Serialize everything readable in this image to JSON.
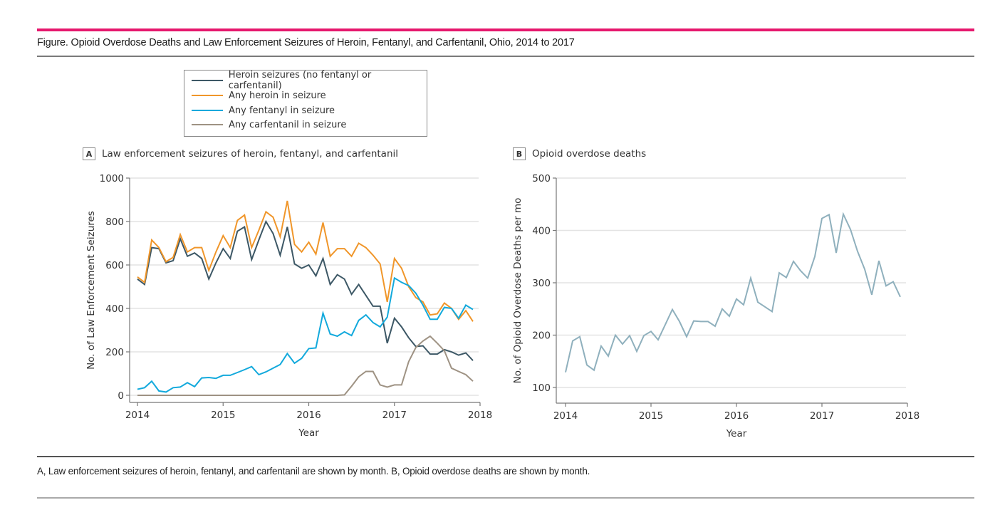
{
  "figure": {
    "title": "Figure. Opioid Overdose Deaths and Law Enforcement Seizures of Heroin, Fentanyl, and Carfentanil, Ohio, 2014 to 2017",
    "caption": "A, Law enforcement seizures of heroin, fentanyl, and carfentanil are shown by month. B, Opioid overdose deaths are shown by month.",
    "accent_color": "#e6186d"
  },
  "legend": {
    "items": [
      {
        "label": "Heroin seizures (no fentanyl or carfentanil)",
        "color": "#3d5866"
      },
      {
        "label": "Any heroin in seizure",
        "color": "#f0962a"
      },
      {
        "label": "Any fentanyl in seizure",
        "color": "#12a9dc"
      },
      {
        "label": "Any carfentanil in seizure",
        "color": "#9e9283"
      }
    ]
  },
  "chart_data": [
    {
      "type": "line",
      "panel": "A",
      "title": "Law enforcement seizures of heroin, fentanyl, and carfentanil",
      "xlabel": "Year",
      "ylabel": "No. of Law Enforcement Seizures",
      "xlim": [
        2014,
        2018
      ],
      "ylim": [
        0,
        1000
      ],
      "xticks": [
        "2014",
        "2015",
        "2016",
        "2017",
        "2018"
      ],
      "yticks": [
        "0",
        "200",
        "400",
        "600",
        "800",
        "1000"
      ],
      "grid": true,
      "legend_position": "top-left",
      "x_unit": "month index from Jan 2014 (0-47)",
      "series": [
        {
          "name": "Heroin seizures (no fentanyl or carfentanil)",
          "color": "#3d5866",
          "values": [
            535,
            510,
            680,
            675,
            610,
            620,
            720,
            640,
            655,
            630,
            535,
            610,
            675,
            630,
            755,
            775,
            625,
            715,
            800,
            745,
            645,
            775,
            605,
            585,
            600,
            550,
            630,
            510,
            555,
            535,
            465,
            510,
            460,
            410,
            410,
            240,
            355,
            315,
            265,
            225,
            228,
            190,
            190,
            210,
            200,
            185,
            195,
            160
          ]
        },
        {
          "name": "Any heroin in seizure",
          "color": "#f0962a",
          "values": [
            545,
            520,
            715,
            680,
            615,
            635,
            740,
            660,
            680,
            680,
            575,
            660,
            735,
            680,
            805,
            830,
            680,
            760,
            845,
            820,
            730,
            895,
            695,
            660,
            705,
            650,
            795,
            640,
            675,
            675,
            640,
            700,
            680,
            645,
            605,
            430,
            630,
            585,
            500,
            450,
            430,
            370,
            375,
            425,
            400,
            350,
            390,
            340
          ]
        },
        {
          "name": "Any fentanyl in seizure",
          "color": "#12a9dc",
          "values": [
            28,
            35,
            65,
            20,
            15,
            35,
            38,
            58,
            40,
            80,
            82,
            78,
            92,
            92,
            105,
            118,
            132,
            95,
            108,
            125,
            142,
            192,
            148,
            170,
            215,
            218,
            378,
            282,
            272,
            292,
            275,
            345,
            370,
            335,
            315,
            360,
            540,
            520,
            505,
            470,
            415,
            350,
            350,
            405,
            400,
            355,
            415,
            395
          ]
        },
        {
          "name": "Any carfentanil in seizure",
          "color": "#9e9283",
          "values": [
            0,
            0,
            0,
            0,
            0,
            0,
            0,
            0,
            0,
            0,
            0,
            0,
            0,
            0,
            0,
            0,
            0,
            0,
            0,
            0,
            0,
            0,
            0,
            0,
            0,
            0,
            0,
            0,
            0,
            2,
            42,
            85,
            110,
            110,
            48,
            38,
            48,
            48,
            155,
            220,
            250,
            272,
            240,
            205,
            125,
            110,
            95,
            65
          ]
        }
      ]
    },
    {
      "type": "line",
      "panel": "B",
      "title": "Opioid overdose deaths",
      "xlabel": "Year",
      "ylabel": "No. of Opioid Overdose Deaths per mo",
      "xlim": [
        2014,
        2018
      ],
      "ylim": [
        85,
        500
      ],
      "xticks": [
        "2014",
        "2015",
        "2016",
        "2017",
        "2018"
      ],
      "yticks": [
        "100",
        "200",
        "300",
        "400",
        "500"
      ],
      "grid": true,
      "x_unit": "month index from Jan 2014 (0-47)",
      "series": [
        {
          "name": "Opioid overdose deaths",
          "color": "#8fb0bd",
          "values": [
            129,
            189,
            197,
            143,
            133,
            179,
            160,
            200,
            183,
            199,
            169,
            199,
            207,
            191,
            220,
            249,
            226,
            197,
            227,
            226,
            226,
            217,
            250,
            236,
            269,
            258,
            309,
            263,
            254,
            245,
            319,
            310,
            341,
            323,
            309,
            350,
            423,
            430,
            357,
            431,
            402,
            360,
            326,
            277,
            342,
            294,
            302,
            273
          ]
        }
      ]
    }
  ]
}
